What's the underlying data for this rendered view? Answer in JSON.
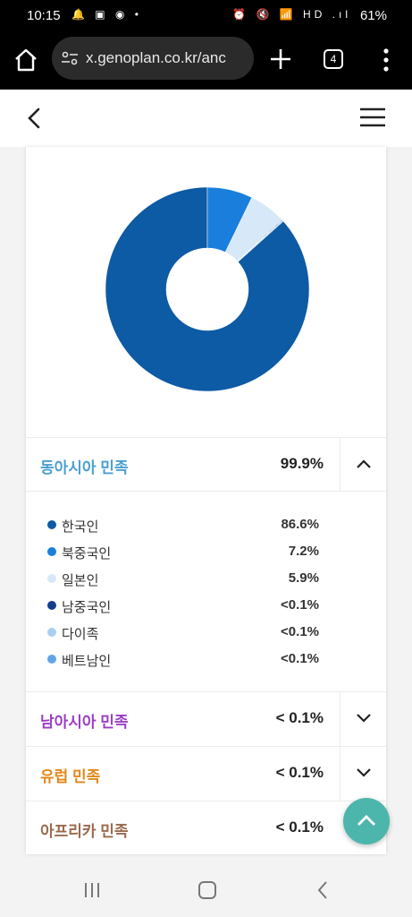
{
  "status_bar": {
    "time": "10:15",
    "left_icons": "🔔 ▣ ◉ •",
    "right_icons": "⏰ 🔇 📶 HD .ıl",
    "battery": "61%"
  },
  "browser": {
    "url": "x.genoplan.co.kr/anc",
    "tab_count": "4"
  },
  "ethnicity": {
    "groups": [
      {
        "label": "동아시아 민족",
        "value": "99.9%",
        "color": "#4a9fd1",
        "expanded": true
      },
      {
        "label": "남아시아 민족",
        "value": "< 0.1%",
        "color": "#9a3fc4",
        "expanded": false
      },
      {
        "label": "유럽 민족",
        "value": "< 0.1%",
        "color": "#e0891a",
        "expanded": false
      },
      {
        "label": "아프리카 민족",
        "value": "< 0.1%",
        "color": "#9a6a4d",
        "expanded": false
      }
    ],
    "east_asia_subgroups": [
      {
        "label": "한국인",
        "value": "86.6%",
        "share": 86.6,
        "color": "#0d5aa5"
      },
      {
        "label": "북중국인",
        "value": "7.2%",
        "share": 7.2,
        "color": "#1a7fdc"
      },
      {
        "label": "일본인",
        "value": "5.9%",
        "share": 5.9,
        "color": "#d7e8f8"
      },
      {
        "label": "남중국인",
        "value": "<0.1%",
        "share": 0.1,
        "color": "#123f8c"
      },
      {
        "label": "다이족",
        "value": "<0.1%",
        "share": 0.1,
        "color": "#a9cff3"
      },
      {
        "label": "베트남인",
        "value": "<0.1%",
        "share": 0.1,
        "color": "#5fa5e6"
      }
    ]
  }
}
